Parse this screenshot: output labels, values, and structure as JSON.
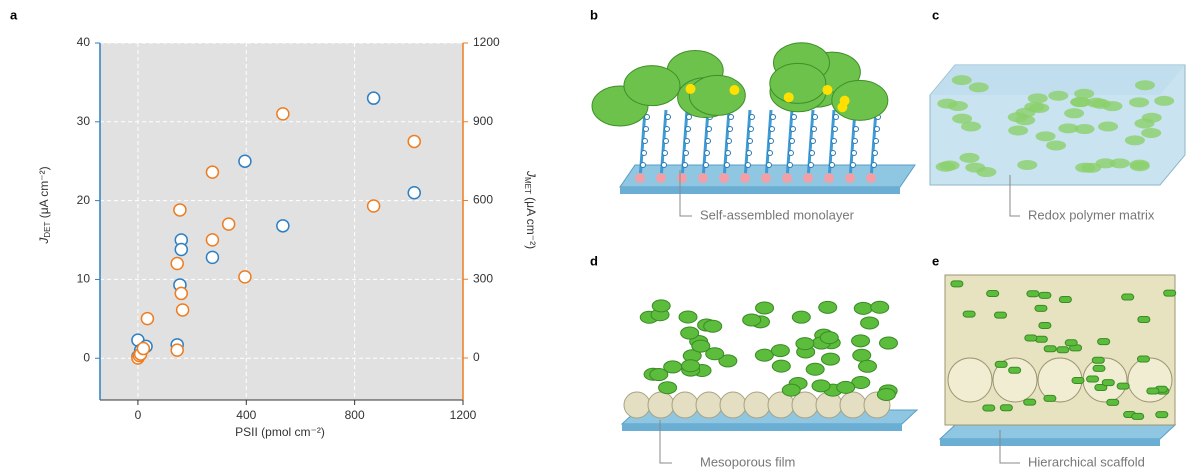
{
  "chart_data": {
    "type": "scatter",
    "panel_label": "a",
    "xlabel": "PSII (pmol cm⁻²)",
    "ylabel": {
      "symbol": "J",
      "subscript": "DET",
      "unit": " (μA cm⁻²)"
    },
    "y2label": {
      "symbol": "J",
      "subscript": "MET",
      "unit": " (μA cm⁻²)"
    },
    "xlim": [
      -140,
      1200
    ],
    "xticks": [
      0,
      400,
      800,
      1200
    ],
    "ylim": [
      -5.3,
      40
    ],
    "yticks": [
      0,
      10,
      20,
      30,
      40
    ],
    "y2lim": [
      -160,
      1200
    ],
    "y2ticks": [
      0,
      300,
      600,
      900,
      1200
    ],
    "grid": true,
    "series": [
      {
        "color": "#2f7fc1",
        "axis": "y",
        "x": [
          0,
          0,
          10,
          30,
          145,
          155,
          160,
          160,
          275,
          395,
          535,
          870,
          1020
        ],
        "values": [
          2.3,
          0.2,
          1,
          1.5,
          1.7,
          9.3,
          15,
          13.8,
          12.8,
          25,
          16.8,
          33,
          21
        ]
      },
      {
        "color": "#ee7d22",
        "axis": "y2",
        "x": [
          0,
          5,
          10,
          20,
          35,
          145,
          145,
          155,
          160,
          165,
          275,
          275,
          335,
          395,
          535,
          870,
          1020
        ],
        "values": [
          0,
          9,
          15,
          36,
          150,
          30,
          360,
          564,
          246,
          183,
          708,
          450,
          510,
          309,
          930,
          579,
          825
        ]
      }
    ]
  },
  "panels": [
    {
      "label": "b",
      "caption": "Self-assembled monolayer"
    },
    {
      "label": "c",
      "caption": "Redox polymer matrix"
    },
    {
      "label": "d",
      "caption": "Mesoporous film"
    },
    {
      "label": "e",
      "caption": "Hierarchical scaffold"
    }
  ]
}
